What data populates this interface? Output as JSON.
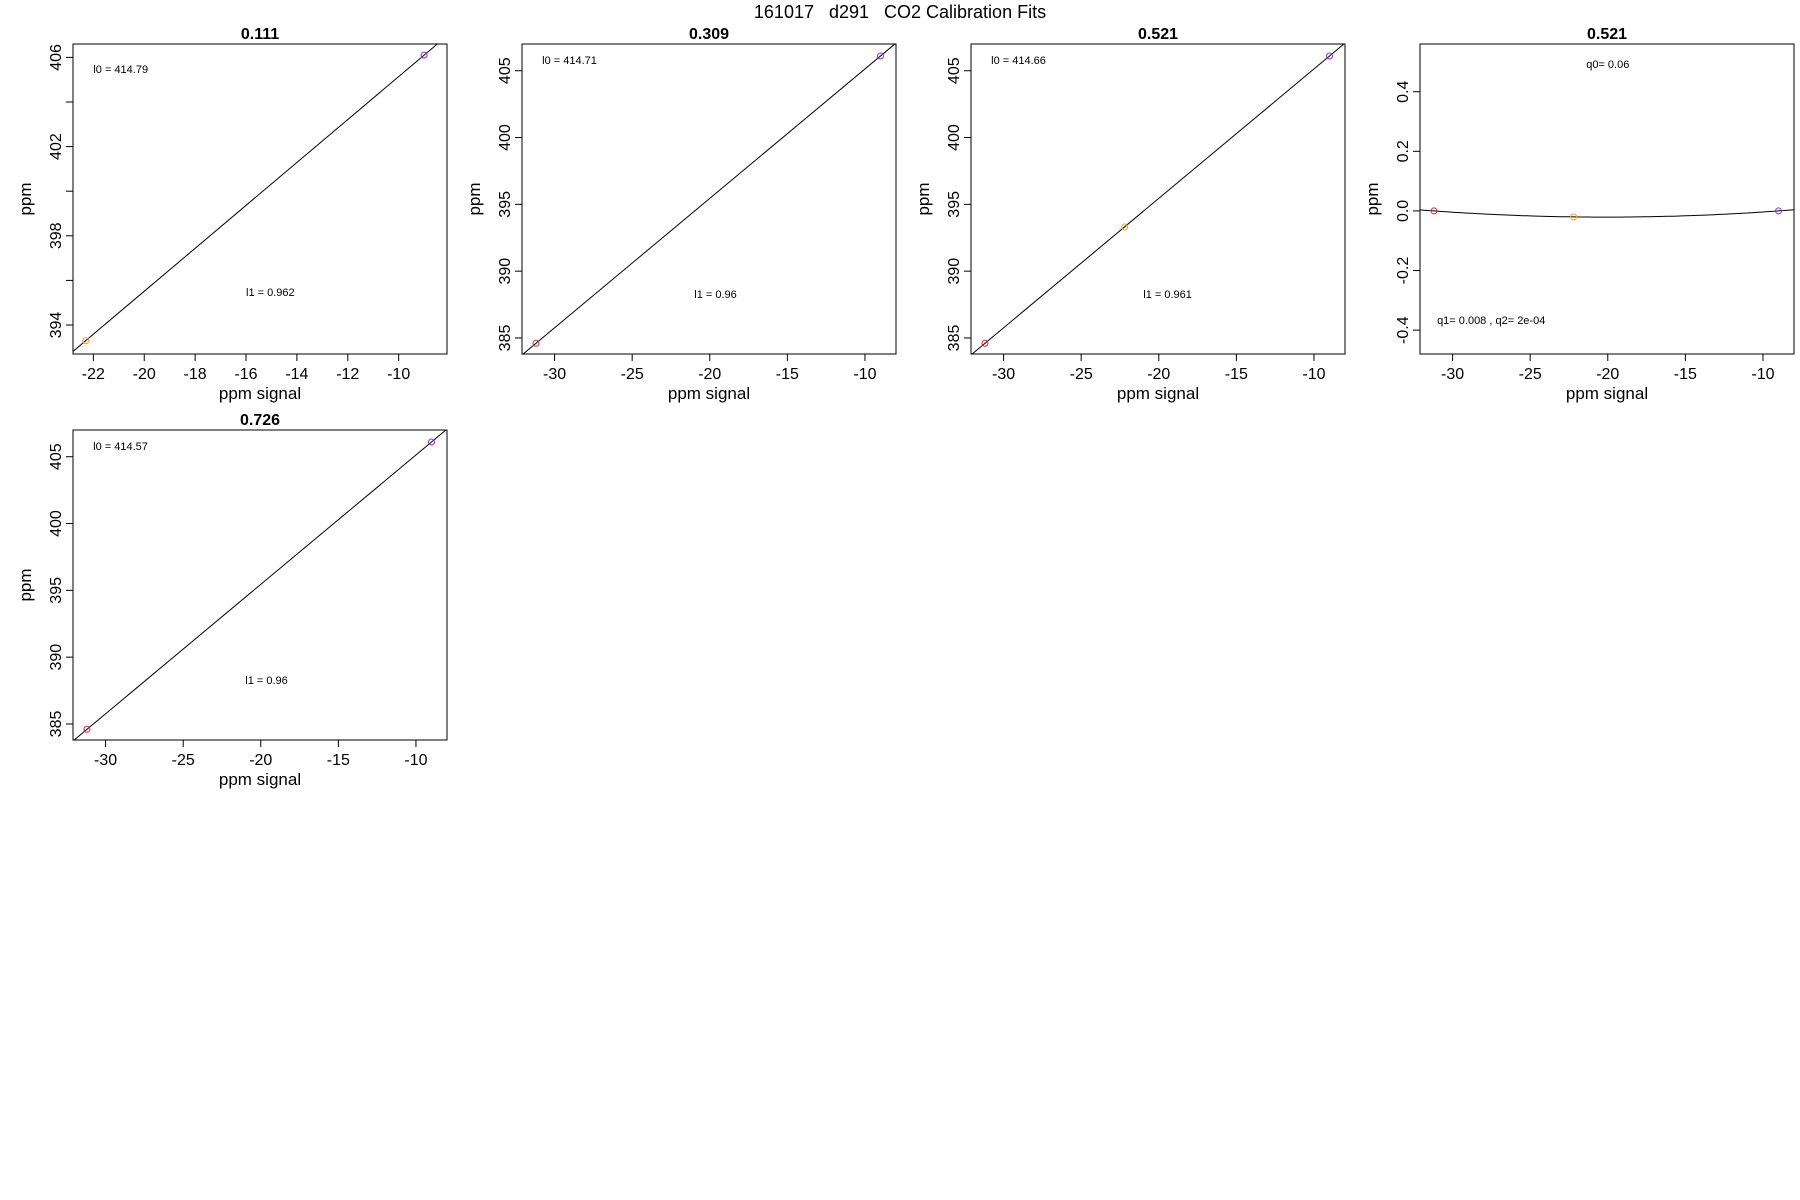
{
  "figure": {
    "title": "161017   d291   CO2 Calibration Fits"
  },
  "colors": {
    "axis": "#000000",
    "fit_line": "#000000",
    "point_low": "#d62728",
    "point_mid": "#ff9f1a",
    "point_high": "#8a2be2"
  },
  "chart_data": [
    {
      "type": "scatter",
      "title": "0.111",
      "xlabel": "ppm signal",
      "ylabel": "ppm",
      "xlim": [
        -22.8,
        -8.1
      ],
      "ylim": [
        392.7,
        406.6
      ],
      "xticks": [
        -22,
        -20,
        -18,
        -16,
        -14,
        -12,
        -10
      ],
      "xtick_labels": [
        "-22",
        "-20",
        "-18",
        "-16",
        "-14",
        "-12",
        "-10"
      ],
      "yticks": [
        394,
        396,
        398,
        400,
        402,
        404,
        406
      ],
      "ytick_labels": [
        "394",
        "",
        "398",
        "",
        "402",
        "",
        "406"
      ],
      "points": [
        {
          "x": -22.3,
          "y": 393.3,
          "color": "#ff9f1a"
        },
        {
          "x": -9.0,
          "y": 406.1,
          "color": "#8a2be2"
        }
      ],
      "fit": {
        "kind": "linear",
        "intercept": 414.79,
        "slope": 0.962
      },
      "annotations": [
        {
          "text": "l0 =  414.79",
          "x": -22.0,
          "y": 405.3
        },
        {
          "text": "l1 =  0.962",
          "x": -16.0,
          "y": 395.3
        }
      ]
    },
    {
      "type": "scatter",
      "title": "0.309",
      "xlabel": "ppm signal",
      "ylabel": "ppm",
      "xlim": [
        -32.1,
        -8.0
      ],
      "ylim": [
        383.8,
        407.0
      ],
      "xticks": [
        -30,
        -25,
        -20,
        -15,
        -10
      ],
      "xtick_labels": [
        "-30",
        "-25",
        "-20",
        "-15",
        "-10"
      ],
      "yticks": [
        385,
        390,
        395,
        400,
        405
      ],
      "ytick_labels": [
        "385",
        "390",
        "395",
        "400",
        "405"
      ],
      "points": [
        {
          "x": -31.2,
          "y": 384.6,
          "color": "#d62728"
        },
        {
          "x": -9.0,
          "y": 406.1,
          "color": "#8a2be2"
        }
      ],
      "fit": {
        "kind": "linear",
        "intercept": 414.71,
        "slope": 0.96
      },
      "annotations": [
        {
          "text": "l0 =  414.71",
          "x": -30.8,
          "y": 405.5
        },
        {
          "text": "l1 =  0.96",
          "x": -21.0,
          "y": 388.0
        }
      ]
    },
    {
      "type": "scatter",
      "title": "0.521",
      "xlabel": "ppm signal",
      "ylabel": "ppm",
      "xlim": [
        -32.1,
        -8.0
      ],
      "ylim": [
        383.8,
        407.0
      ],
      "xticks": [
        -30,
        -25,
        -20,
        -15,
        -10
      ],
      "xtick_labels": [
        "-30",
        "-25",
        "-20",
        "-15",
        "-10"
      ],
      "yticks": [
        385,
        390,
        395,
        400,
        405
      ],
      "ytick_labels": [
        "385",
        "390",
        "395",
        "400",
        "405"
      ],
      "points": [
        {
          "x": -31.2,
          "y": 384.6,
          "color": "#d62728"
        },
        {
          "x": -22.2,
          "y": 393.3,
          "color": "#ff9f1a"
        },
        {
          "x": -9.0,
          "y": 406.1,
          "color": "#8a2be2"
        }
      ],
      "fit": {
        "kind": "linear",
        "intercept": 414.66,
        "slope": 0.961
      },
      "annotations": [
        {
          "text": "l0 =  414.66",
          "x": -30.8,
          "y": 405.5
        },
        {
          "text": "l1 =  0.961",
          "x": -21.0,
          "y": 388.0
        }
      ]
    },
    {
      "type": "scatter",
      "title": "0.521",
      "xlabel": "ppm signal",
      "ylabel": "ppm",
      "xlim": [
        -32.1,
        -8.0
      ],
      "ylim": [
        -0.48,
        0.56
      ],
      "xticks": [
        -30,
        -25,
        -20,
        -15,
        -10
      ],
      "xtick_labels": [
        "-30",
        "-25",
        "-20",
        "-15",
        "-10"
      ],
      "yticks": [
        -0.4,
        -0.2,
        0.0,
        0.2,
        0.4
      ],
      "ytick_labels": [
        "-0.4",
        "-0.2",
        "0.0",
        "0.2",
        "0.4"
      ],
      "points": [
        {
          "x": -31.2,
          "y": 0.0,
          "color": "#d62728"
        },
        {
          "x": -22.2,
          "y": -0.02,
          "color": "#ff9f1a"
        },
        {
          "x": -9.0,
          "y": 0.0,
          "color": "#8a2be2"
        }
      ],
      "fit": {
        "kind": "quadratic",
        "q0": 0.06,
        "q1": 0.008,
        "q2": 0.0002
      },
      "annotations": [
        {
          "text": "q0= 0.06",
          "x": -20.0,
          "y": 0.48
        },
        {
          "text": "q1= 0.008 , q2= 2e-04",
          "x": -31.0,
          "y": -0.38
        }
      ]
    },
    {
      "type": "scatter",
      "title": "0.726",
      "xlabel": "ppm signal",
      "ylabel": "ppm",
      "xlim": [
        -32.1,
        -8.0
      ],
      "ylim": [
        383.8,
        407.0
      ],
      "xticks": [
        -30,
        -25,
        -20,
        -15,
        -10
      ],
      "xtick_labels": [
        "-30",
        "-25",
        "-20",
        "-15",
        "-10"
      ],
      "yticks": [
        385,
        390,
        395,
        400,
        405
      ],
      "ytick_labels": [
        "385",
        "390",
        "395",
        "400",
        "405"
      ],
      "points": [
        {
          "x": -31.2,
          "y": 384.6,
          "color": "#d62728"
        },
        {
          "x": -9.0,
          "y": 406.1,
          "color": "#8a2be2"
        }
      ],
      "fit": {
        "kind": "linear",
        "intercept": 414.57,
        "slope": 0.96
      },
      "annotations": [
        {
          "text": "l0 =  414.57",
          "x": -30.8,
          "y": 405.5
        },
        {
          "text": "l1 =  0.96",
          "x": -21.0,
          "y": 388.0
        }
      ]
    }
  ]
}
